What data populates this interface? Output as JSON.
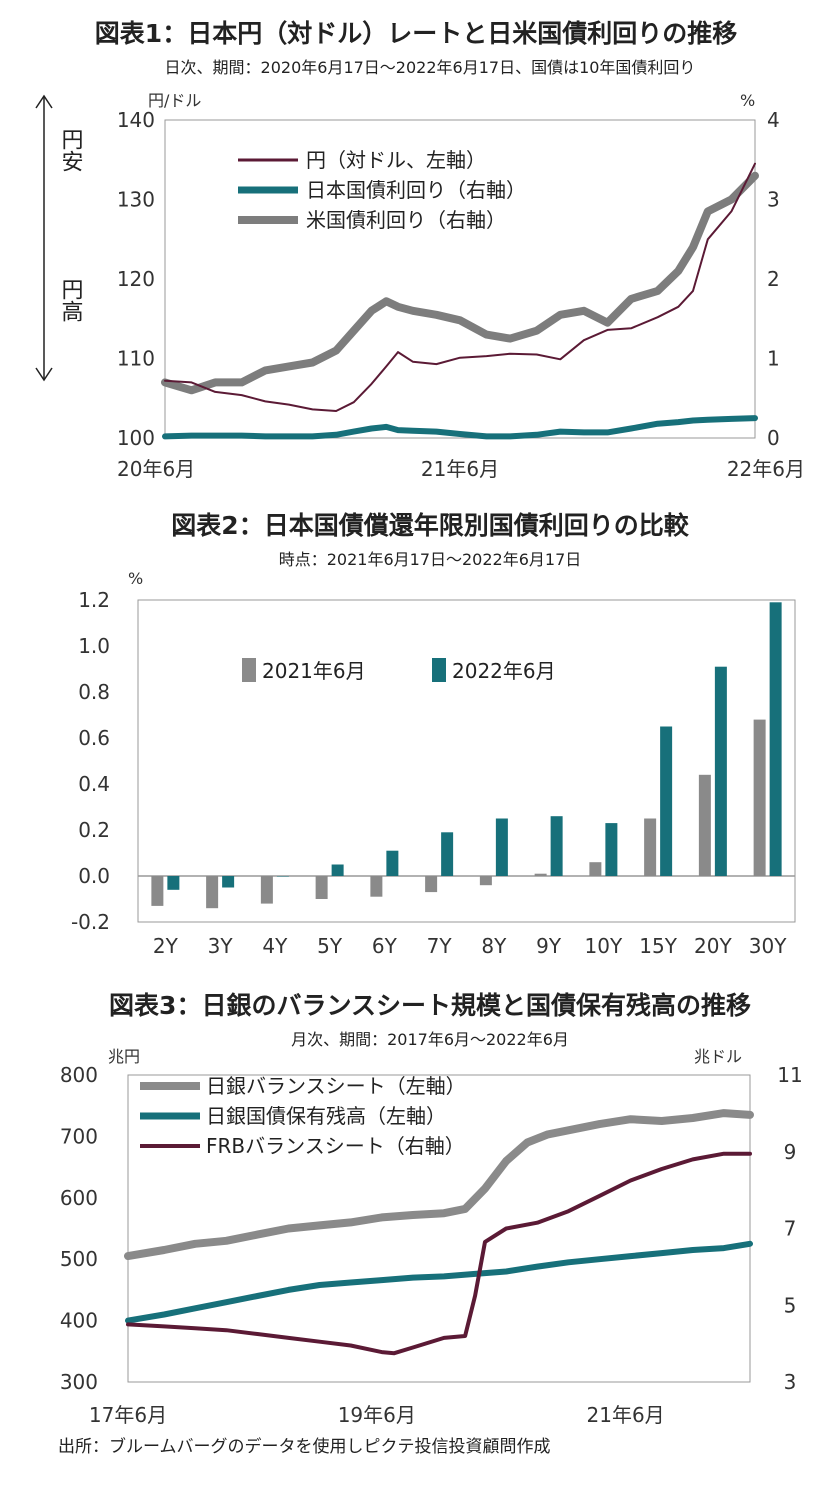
{
  "charts": [
    {
      "type": "line",
      "title": "図表1：日本円（対ドル）レートと日米国債利回りの推移",
      "subtitle": "日次、期間：2020年6月17日～2022年6月17日、国債は10年国債利回り",
      "yunit_left": "円/ドル",
      "yunit_right": "%",
      "annot_up": "円安",
      "annot_down": "円高",
      "yleft": {
        "min": 100,
        "max": 140,
        "ticks": [
          "100",
          "110",
          "120",
          "130",
          "140"
        ]
      },
      "yright": {
        "min": 0,
        "max": 4,
        "ticks": [
          "0",
          "1",
          "2",
          "3",
          "4"
        ]
      },
      "xticks": [
        "20年6月",
        "21年6月",
        "22年6月"
      ],
      "series": [
        {
          "name": "円（対ドル、左軸）",
          "axis": "left",
          "color": "#5b1a35",
          "x": [
            2020.46,
            2020.55,
            2020.63,
            2020.72,
            2020.8,
            2020.88,
            2020.96,
            2021.04,
            2021.1,
            2021.16,
            2021.21,
            2021.25,
            2021.3,
            2021.38,
            2021.46,
            2021.55,
            2021.63,
            2021.72,
            2021.8,
            2021.88,
            2021.96,
            2022.04,
            2022.13,
            2022.2,
            2022.25,
            2022.3,
            2022.38,
            2022.46
          ],
          "values": [
            107.2,
            107.0,
            105.8,
            105.4,
            104.6,
            104.2,
            103.6,
            103.4,
            104.5,
            106.8,
            109.0,
            110.8,
            109.6,
            109.3,
            110.1,
            110.3,
            110.6,
            110.5,
            109.9,
            112.3,
            113.6,
            113.8,
            115.2,
            116.5,
            118.5,
            125.0,
            128.5,
            134.5
          ]
        },
        {
          "name": "日本国債利回り（右軸）",
          "axis": "right",
          "color": "#17707a",
          "x": [
            2020.46,
            2020.55,
            2020.63,
            2020.72,
            2020.8,
            2020.88,
            2020.96,
            2021.04,
            2021.1,
            2021.16,
            2021.21,
            2021.25,
            2021.3,
            2021.38,
            2021.46,
            2021.55,
            2021.63,
            2021.72,
            2021.8,
            2021.88,
            2021.96,
            2022.04,
            2022.13,
            2022.2,
            2022.25,
            2022.3,
            2022.38,
            2022.46
          ],
          "values": [
            0.02,
            0.03,
            0.03,
            0.03,
            0.02,
            0.02,
            0.02,
            0.04,
            0.08,
            0.12,
            0.14,
            0.1,
            0.09,
            0.08,
            0.05,
            0.02,
            0.02,
            0.04,
            0.08,
            0.07,
            0.07,
            0.12,
            0.18,
            0.2,
            0.22,
            0.23,
            0.24,
            0.25
          ]
        },
        {
          "name": "米国債利回り（右軸）",
          "axis": "right",
          "color": "#7d7d7d",
          "x": [
            2020.46,
            2020.55,
            2020.63,
            2020.72,
            2020.8,
            2020.88,
            2020.96,
            2021.04,
            2021.1,
            2021.16,
            2021.21,
            2021.25,
            2021.3,
            2021.38,
            2021.46,
            2021.55,
            2021.63,
            2021.72,
            2021.8,
            2021.88,
            2021.96,
            2022.04,
            2022.13,
            2022.2,
            2022.25,
            2022.3,
            2022.38,
            2022.46
          ],
          "values": [
            0.7,
            0.6,
            0.7,
            0.7,
            0.85,
            0.9,
            0.95,
            1.1,
            1.35,
            1.6,
            1.72,
            1.65,
            1.6,
            1.55,
            1.48,
            1.3,
            1.25,
            1.35,
            1.55,
            1.6,
            1.45,
            1.75,
            1.85,
            2.1,
            2.4,
            2.85,
            3.0,
            3.3
          ]
        }
      ]
    },
    {
      "type": "bar",
      "title": "図表2：日本国債償還年限別国債利回りの比較",
      "subtitle": "時点：2021年6月17日～2022年6月17日",
      "yunit": "%",
      "ylim": [
        -0.2,
        1.2
      ],
      "yticks": [
        "-0.2",
        "0.0",
        "0.2",
        "0.4",
        "0.6",
        "0.8",
        "1.0",
        "1.2"
      ],
      "categories": [
        "2Y",
        "3Y",
        "4Y",
        "5Y",
        "6Y",
        "7Y",
        "8Y",
        "9Y",
        "10Y",
        "15Y",
        "20Y",
        "30Y"
      ],
      "series": [
        {
          "name": "2021年6月",
          "color": "#8a8a8a",
          "values": [
            -0.13,
            -0.14,
            -0.12,
            -0.1,
            -0.09,
            -0.07,
            -0.04,
            0.01,
            0.06,
            0.25,
            0.44,
            0.68
          ]
        },
        {
          "name": "2022年6月",
          "color": "#17707a",
          "values": [
            -0.06,
            -0.05,
            0.0,
            0.05,
            0.11,
            0.19,
            0.25,
            0.26,
            0.23,
            0.65,
            0.91,
            1.19
          ]
        }
      ]
    },
    {
      "type": "line",
      "title": "図表3：日銀のバランスシート規模と国債保有残高の推移",
      "subtitle": "月次、期間：2017年6月～2022年6月",
      "yunit_left": "兆円",
      "yunit_right": "兆ドル",
      "yleft": {
        "min": 300,
        "max": 800,
        "ticks": [
          "300",
          "400",
          "500",
          "600",
          "700",
          "800"
        ]
      },
      "yright": {
        "min": 3,
        "max": 11,
        "ticks": [
          "3",
          "5",
          "7",
          "9",
          "11"
        ]
      },
      "xticks": [
        "17年6月",
        "19年6月",
        "21年6月"
      ],
      "series": [
        {
          "name": "日銀バランスシート（左軸）",
          "axis": "left",
          "color": "#8a8a8a",
          "x": [
            2017.46,
            2017.75,
            2018.0,
            2018.25,
            2018.5,
            2018.75,
            2019.0,
            2019.25,
            2019.5,
            2019.75,
            2020.0,
            2020.17,
            2020.33,
            2020.5,
            2020.67,
            2020.83,
            2021.0,
            2021.25,
            2021.5,
            2021.75,
            2022.0,
            2022.25,
            2022.46
          ],
          "values": [
            505,
            515,
            525,
            530,
            540,
            550,
            555,
            560,
            568,
            572,
            575,
            582,
            615,
            660,
            690,
            703,
            710,
            720,
            728,
            725,
            730,
            738,
            735
          ]
        },
        {
          "name": "日銀国債保有残高（左軸）",
          "axis": "left",
          "color": "#17707a",
          "x": [
            2017.46,
            2017.75,
            2018.0,
            2018.25,
            2018.5,
            2018.75,
            2019.0,
            2019.25,
            2019.5,
            2019.75,
            2020.0,
            2020.25,
            2020.5,
            2020.75,
            2021.0,
            2021.25,
            2021.5,
            2021.75,
            2022.0,
            2022.25,
            2022.46
          ],
          "values": [
            400,
            410,
            420,
            430,
            440,
            450,
            458,
            462,
            466,
            470,
            472,
            476,
            480,
            488,
            495,
            500,
            505,
            510,
            515,
            518,
            525
          ]
        },
        {
          "name": "FRBバランスシート（右軸）",
          "axis": "right",
          "color": "#5b1a35",
          "x": [
            2017.46,
            2017.75,
            2018.0,
            2018.25,
            2018.5,
            2018.75,
            2019.0,
            2019.25,
            2019.5,
            2019.6,
            2019.75,
            2020.0,
            2020.17,
            2020.25,
            2020.33,
            2020.5,
            2020.75,
            2021.0,
            2021.25,
            2021.5,
            2021.75,
            2022.0,
            2022.25,
            2022.46
          ],
          "values": [
            4.5,
            4.45,
            4.4,
            4.35,
            4.25,
            4.15,
            4.05,
            3.95,
            3.78,
            3.75,
            3.9,
            4.15,
            4.2,
            5.25,
            6.65,
            7.0,
            7.15,
            7.45,
            7.85,
            8.25,
            8.55,
            8.8,
            8.95,
            8.95
          ]
        }
      ]
    }
  ],
  "source_note": "出所：ブルームバーグのデータを使用しピクテ投信投資顧問作成"
}
